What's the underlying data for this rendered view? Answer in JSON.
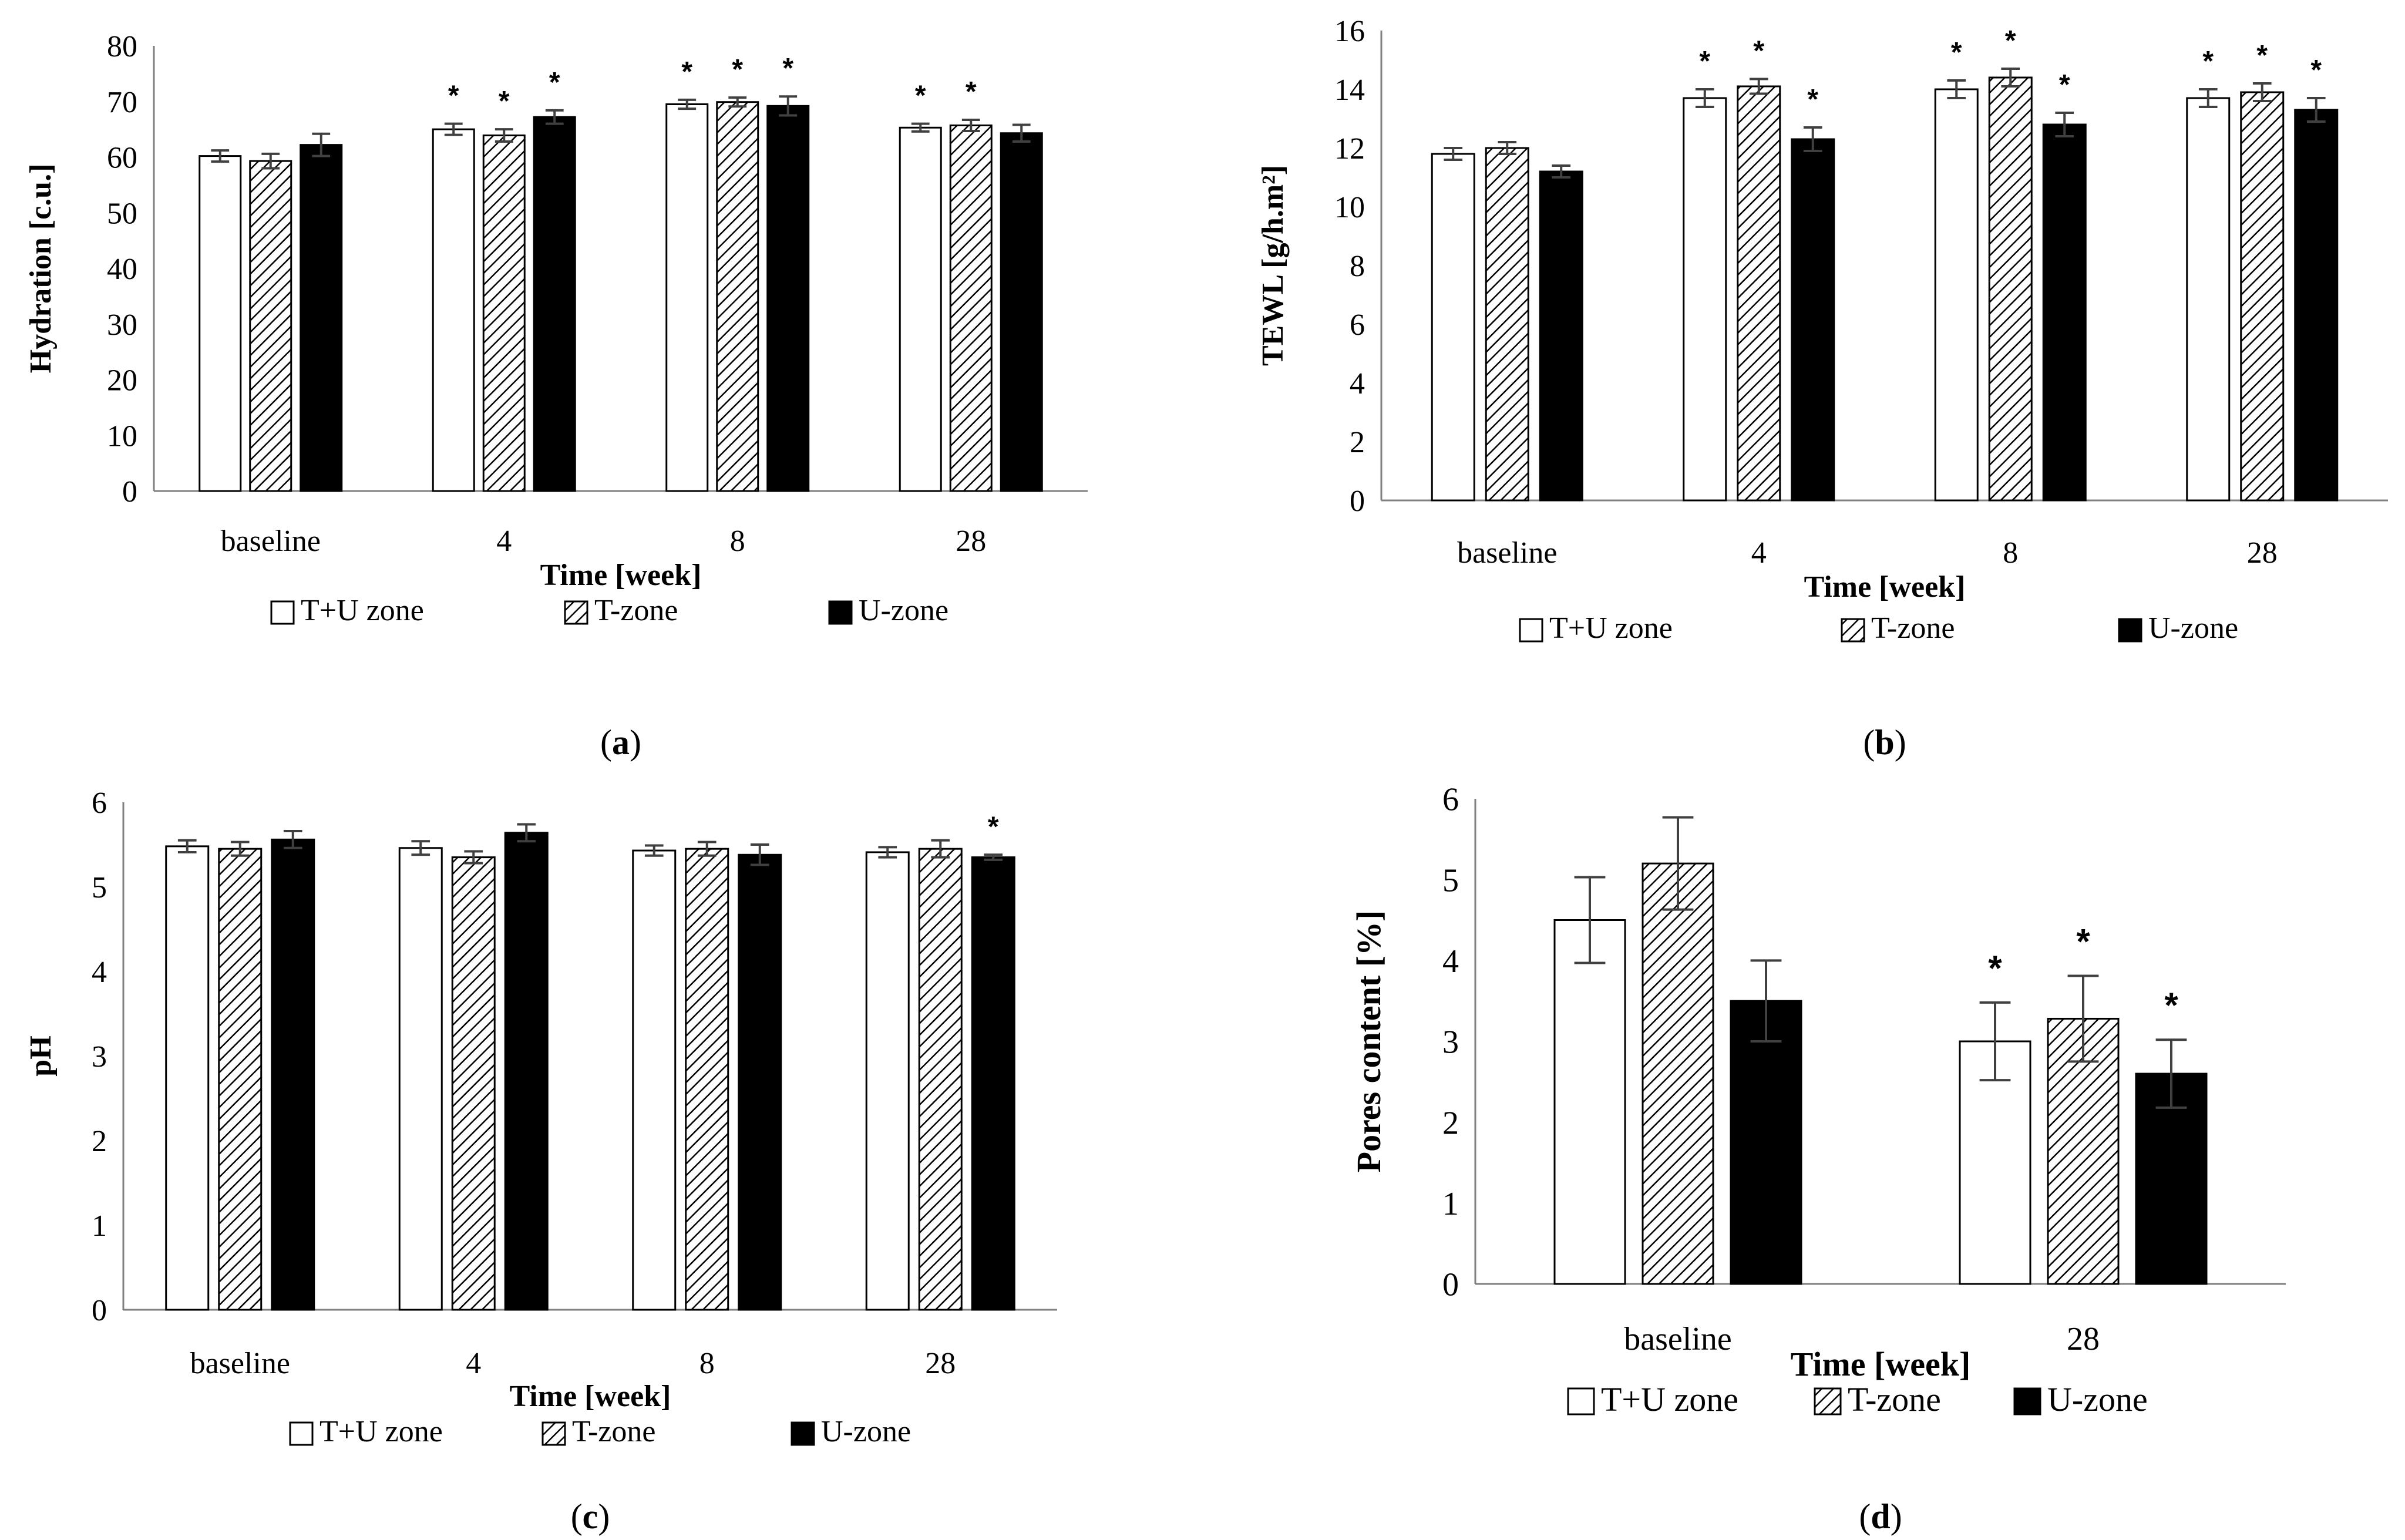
{
  "figure": {
    "series_names": [
      "T+U zone",
      "T-zone",
      "U-zone"
    ],
    "colors": {
      "bar_stroke": "#000000",
      "bar_fill_white": "#ffffff",
      "bar_fill_black": "#000000",
      "error_bar": "#404040",
      "axis": "#808080"
    }
  },
  "chart_data": [
    {
      "type": "bar",
      "panel_label": "a",
      "ylabel": "Hydration [c.u.]",
      "xlabel": "Time [week]",
      "ylim": [
        0,
        80
      ],
      "yticks": [
        0,
        10,
        20,
        30,
        40,
        50,
        60,
        70,
        80
      ],
      "categories": [
        "baseline",
        "4",
        "8",
        "28"
      ],
      "series": [
        {
          "name": "T+U zone",
          "values": [
            60.2,
            65.0,
            69.5,
            65.3
          ],
          "errors": [
            1.0,
            1.0,
            0.8,
            0.7
          ],
          "significant": [
            false,
            true,
            true,
            true
          ]
        },
        {
          "name": "T-zone",
          "values": [
            59.3,
            63.9,
            69.9,
            65.7
          ],
          "errors": [
            1.3,
            1.1,
            0.8,
            1.0
          ],
          "significant": [
            false,
            true,
            true,
            true
          ]
        },
        {
          "name": "U-zone",
          "values": [
            62.2,
            67.2,
            69.2,
            64.3
          ],
          "errors": [
            2.0,
            1.2,
            1.7,
            1.5
          ],
          "significant": [
            false,
            true,
            true,
            false
          ]
        }
      ]
    },
    {
      "type": "bar",
      "panel_label": "b",
      "ylabel": "TEWL [g/h.m²]",
      "xlabel": "Time [week]",
      "ylim": [
        0,
        16
      ],
      "yticks": [
        0,
        2,
        4,
        6,
        8,
        10,
        12,
        14,
        16
      ],
      "categories": [
        "baseline",
        "4",
        "8",
        "28"
      ],
      "series": [
        {
          "name": "T+U zone",
          "values": [
            11.8,
            13.7,
            14.0,
            13.7
          ],
          "errors": [
            0.2,
            0.3,
            0.3,
            0.3
          ],
          "significant": [
            false,
            true,
            true,
            true
          ]
        },
        {
          "name": "T-zone",
          "values": [
            12.0,
            14.1,
            14.4,
            13.9
          ],
          "errors": [
            0.2,
            0.25,
            0.3,
            0.3
          ],
          "significant": [
            false,
            true,
            true,
            true
          ]
        },
        {
          "name": "U-zone",
          "values": [
            11.2,
            12.3,
            12.8,
            13.3
          ],
          "errors": [
            0.2,
            0.4,
            0.4,
            0.4
          ],
          "significant": [
            false,
            true,
            true,
            true
          ]
        }
      ]
    },
    {
      "type": "bar",
      "panel_label": "c",
      "ylabel": "pH",
      "xlabel": "Time [week]",
      "ylim": [
        0,
        6
      ],
      "yticks": [
        0,
        1,
        2,
        3,
        4,
        5,
        6
      ],
      "categories": [
        "baseline",
        "4",
        "8",
        "28"
      ],
      "series": [
        {
          "name": "T+U zone",
          "values": [
            5.48,
            5.46,
            5.43,
            5.41
          ],
          "errors": [
            0.07,
            0.08,
            0.06,
            0.06
          ],
          "significant": [
            false,
            false,
            false,
            false
          ]
        },
        {
          "name": "T-zone",
          "values": [
            5.45,
            5.35,
            5.45,
            5.45
          ],
          "errors": [
            0.08,
            0.07,
            0.08,
            0.1
          ],
          "significant": [
            false,
            false,
            false,
            false
          ]
        },
        {
          "name": "U-zone",
          "values": [
            5.56,
            5.64,
            5.38,
            5.35
          ],
          "errors": [
            0.1,
            0.1,
            0.12,
            0.03
          ],
          "significant": [
            false,
            false,
            false,
            true
          ]
        }
      ]
    },
    {
      "type": "bar",
      "panel_label": "d",
      "ylabel": "Pores content [%]",
      "xlabel": "Time [week]",
      "ylim": [
        0,
        6
      ],
      "yticks": [
        0,
        1,
        2,
        3,
        4,
        5,
        6
      ],
      "categories": [
        "baseline",
        "28"
      ],
      "series": [
        {
          "name": "T+U zone",
          "values": [
            4.5,
            3.0
          ],
          "errors": [
            0.53,
            0.48
          ],
          "significant": [
            false,
            true
          ]
        },
        {
          "name": "T-zone",
          "values": [
            5.2,
            3.28
          ],
          "errors": [
            0.57,
            0.53
          ],
          "significant": [
            false,
            true
          ]
        },
        {
          "name": "U-zone",
          "values": [
            3.5,
            2.6
          ],
          "errors": [
            0.5,
            0.42
          ],
          "significant": [
            false,
            true
          ]
        }
      ]
    }
  ]
}
